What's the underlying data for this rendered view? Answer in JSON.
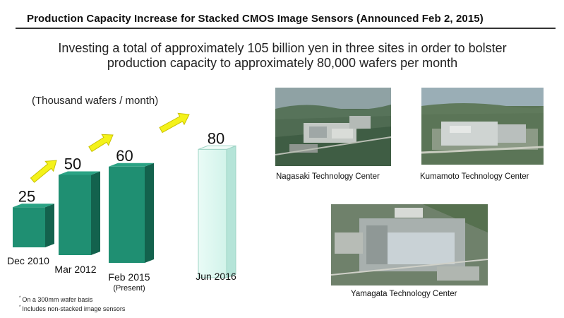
{
  "title": "Production Capacity Increase for Stacked CMOS Image Sensors (Announced Feb 2, 2015)",
  "subtitle_line1": "Investing a total of approximately 105 billion yen in three sites in order to bolster",
  "subtitle_line2": "production capacity to approximately 80,000 wafers per month",
  "chart_data": {
    "type": "bar",
    "unit_label": "(Thousand wafers / month)",
    "categories": [
      "Dec 2010",
      "Mar 2012",
      "Feb 2015",
      "Jun 2016"
    ],
    "category_sublabels": [
      "",
      "",
      "(Present)",
      ""
    ],
    "values": [
      25,
      50,
      60,
      80
    ],
    "value_labels": [
      "25",
      "50",
      "60",
      "80"
    ],
    "colors": [
      "#1f8f72",
      "#1f8f72",
      "#1f8f72",
      "#dff7f1"
    ]
  },
  "photos": [
    {
      "caption": "Nagasaki Technology Center"
    },
    {
      "caption": "Kumamoto Technology Center"
    },
    {
      "caption": "Yamagata Technology Center"
    }
  ],
  "notes": [
    {
      "mark": "*",
      "text": "On a 300mm wafer basis"
    },
    {
      "mark": "*",
      "text": "Includes non-stacked image sensors"
    }
  ]
}
